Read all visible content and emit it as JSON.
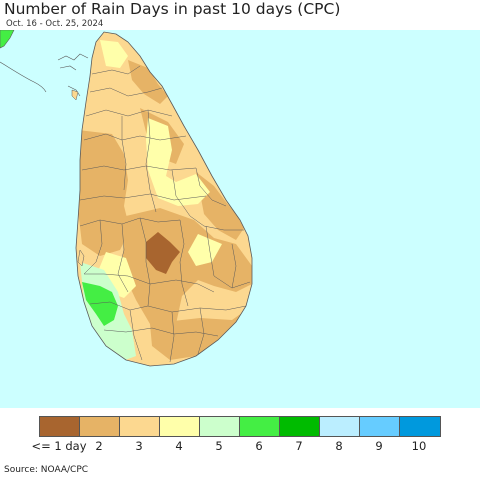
{
  "header": {
    "title": "Number of Rain Days in past 10 days (CPC)",
    "subtitle": "Oct. 16 - Oct. 25, 2024"
  },
  "map": {
    "ocean_color": "#ccffff",
    "boundary_color": "#5a5a5a",
    "country": "Sri Lanka"
  },
  "legend": {
    "items": [
      {
        "label": "<= 1 day",
        "color": "#a8652f"
      },
      {
        "label": "2",
        "color": "#e6b366"
      },
      {
        "label": "3",
        "color": "#fcd890"
      },
      {
        "label": "4",
        "color": "#ffffaa"
      },
      {
        "label": "5",
        "color": "#ccffcc"
      },
      {
        "label": "6",
        "color": "#44ee44"
      },
      {
        "label": "7",
        "color": "#00bb00"
      },
      {
        "label": "8",
        "color": "#bbeeff"
      },
      {
        "label": "9",
        "color": "#66ccff"
      },
      {
        "label": "10",
        "color": "#0099dd"
      }
    ]
  },
  "footer": {
    "source": "Source: NOAA/CPC"
  }
}
